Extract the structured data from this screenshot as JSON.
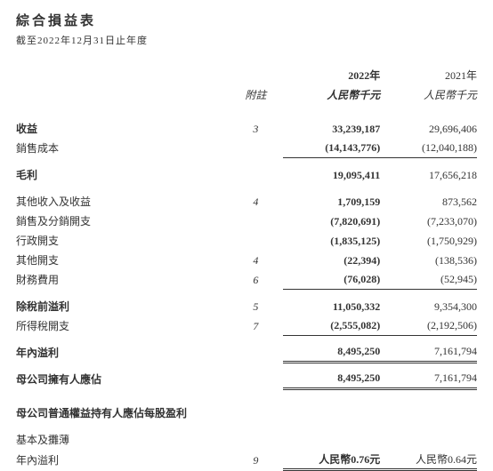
{
  "title": "綜合損益表",
  "subtitle": "截至2022年12月31日止年度",
  "header": {
    "note_col": "附註",
    "year_curr": "2022年",
    "year_prev": "2021年",
    "unit_curr": "人民幣千元",
    "unit_prev": "人民幣千元"
  },
  "rows": {
    "revenue": {
      "label": "收益",
      "note": "3",
      "curr": "33,239,187",
      "prev": "29,696,406"
    },
    "cost_of_sales": {
      "label": "銷售成本",
      "note": "",
      "curr": "(14,143,776)",
      "prev": "(12,040,188)"
    },
    "gross_profit": {
      "label": "毛利",
      "note": "",
      "curr": "19,095,411",
      "prev": "17,656,218"
    },
    "other_income": {
      "label": "其他收入及收益",
      "note": "4",
      "curr": "1,709,159",
      "prev": "873,562"
    },
    "sell_dist": {
      "label": "銷售及分銷開支",
      "note": "",
      "curr": "(7,820,691)",
      "prev": "(7,233,070)"
    },
    "admin": {
      "label": "行政開支",
      "note": "",
      "curr": "(1,835,125)",
      "prev": "(1,750,929)"
    },
    "other_exp": {
      "label": "其他開支",
      "note": "4",
      "curr": "(22,394)",
      "prev": "(138,536)"
    },
    "finance": {
      "label": "財務費用",
      "note": "6",
      "curr": "(76,028)",
      "prev": "(52,945)"
    },
    "pbt": {
      "label": "除稅前溢利",
      "note": "5",
      "curr": "11,050,332",
      "prev": "9,354,300"
    },
    "tax": {
      "label": "所得稅開支",
      "note": "7",
      "curr": "(2,555,082)",
      "prev": "(2,192,506)"
    },
    "profit_year": {
      "label": "年內溢利",
      "note": "",
      "curr": "8,495,250",
      "prev": "7,161,794"
    },
    "attrib_parent": {
      "label": "母公司擁有人應佔",
      "note": "",
      "curr": "8,495,250",
      "prev": "7,161,794"
    },
    "eps_heading": {
      "label": "母公司普通權益持有人應佔每股盈利"
    },
    "eps_basic": {
      "label": "基本及攤薄"
    },
    "eps_value": {
      "label": "年內溢利",
      "note": "9",
      "curr": "人民幣0.76元",
      "prev": "人民幣0.64元"
    }
  }
}
